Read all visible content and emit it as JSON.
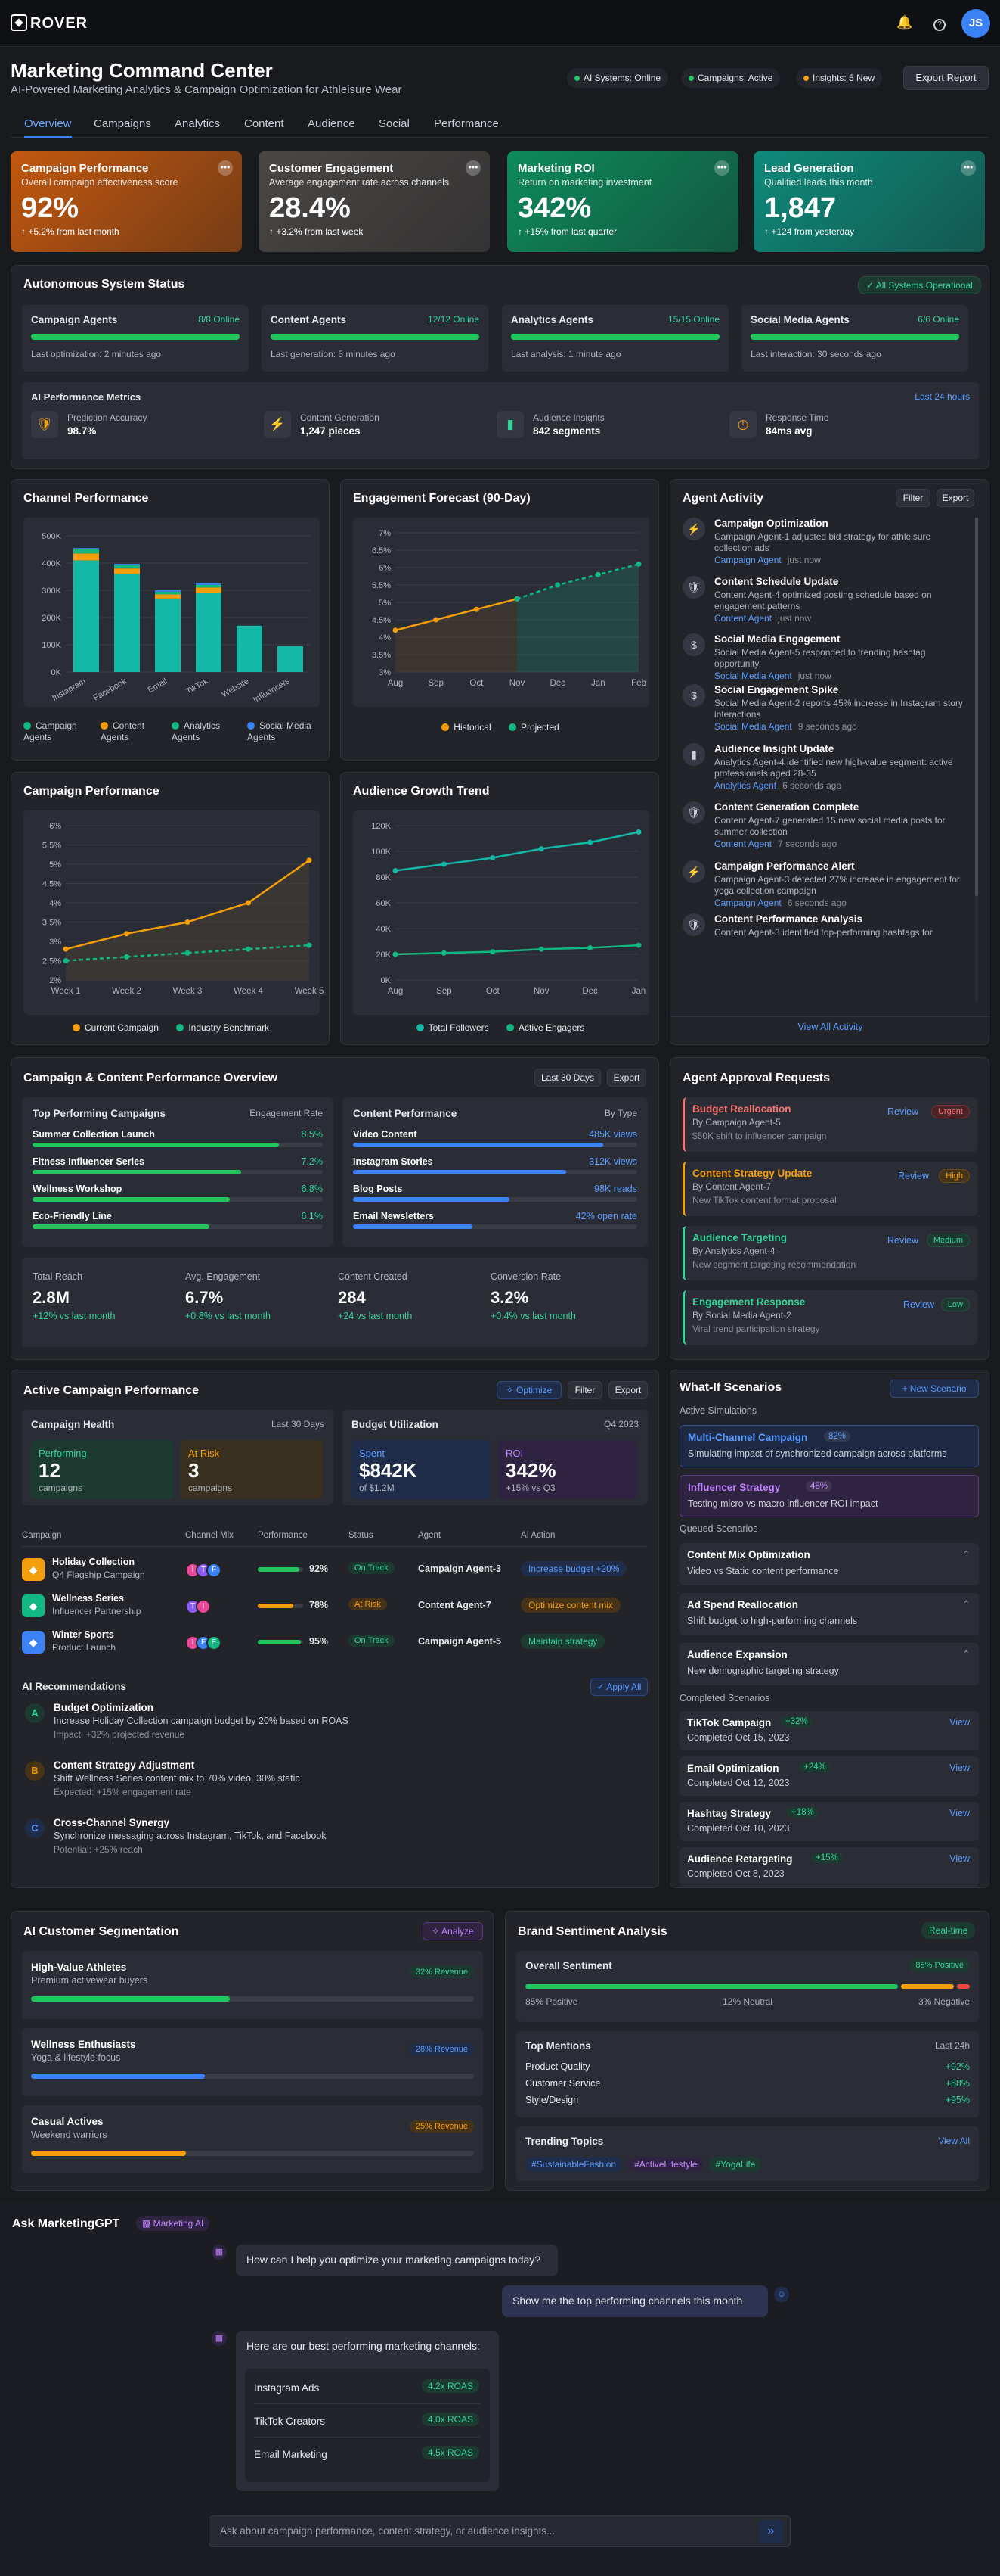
{
  "app": {
    "name": "ROVER",
    "avatar_initials": "JS"
  },
  "header": {
    "title": "Marketing Command Center",
    "subtitle": "AI-Powered Marketing Analytics & Campaign Optimization for Athleisure Wear",
    "status": [
      {
        "label": "AI Systems: Online",
        "color": "#22c55e"
      },
      {
        "label": "Campaigns: Active",
        "color": "#22c55e"
      },
      {
        "label": "Insights: 5 New",
        "color": "#f59e0b"
      }
    ],
    "export_label": "Export Report"
  },
  "tabs": [
    "Overview",
    "Campaigns",
    "Analytics",
    "Content",
    "Audience",
    "Social",
    "Performance"
  ],
  "kpis": [
    {
      "title": "Campaign Performance",
      "sub": "Overall campaign effectiveness score",
      "value": "92%",
      "delta": "+5.2% from last month",
      "color": "#c2580f"
    },
    {
      "title": "Customer Engagement",
      "sub": "Average engagement rate across channels",
      "value": "28.4%",
      "delta": "+3.2% from last week",
      "color": "#4a4744"
    },
    {
      "title": "Marketing ROI",
      "sub": "Return on marketing investment",
      "value": "342%",
      "delta": "+15% from last quarter",
      "color": "#0d8a5c"
    },
    {
      "title": "Lead Generation",
      "sub": "Qualified leads this month",
      "value": "1,847",
      "delta": "+124 from yesterday",
      "color": "#0e8a7a"
    }
  ],
  "autonomous": {
    "title": "Autonomous System Status",
    "badge": "All Systems Operational",
    "agents": [
      {
        "name": "Campaign Agents",
        "online": "8/8 Online",
        "fill": 100,
        "note": "Last optimization: 2 minutes ago"
      },
      {
        "name": "Content Agents",
        "online": "12/12 Online",
        "fill": 100,
        "note": "Last generation: 5 minutes ago"
      },
      {
        "name": "Analytics Agents",
        "online": "15/15 Online",
        "fill": 100,
        "note": "Last analysis: 1 minute ago"
      },
      {
        "name": "Social Media Agents",
        "online": "6/6 Online",
        "fill": 100,
        "note": "Last interaction: 30 seconds ago"
      }
    ],
    "metrics_title": "AI Performance Metrics",
    "metrics_range": "Last 24 hours",
    "metrics": [
      {
        "label": "Prediction Accuracy",
        "value": "98.7%",
        "icon": "shield-icon",
        "color": "#f59e0b"
      },
      {
        "label": "Content Generation",
        "value": "1,247 pieces",
        "icon": "bolt-icon",
        "color": "#34d399"
      },
      {
        "label": "Audience Insights",
        "value": "842 segments",
        "icon": "bar-chart-icon",
        "color": "#34d399"
      },
      {
        "label": "Response Time",
        "value": "84ms avg",
        "icon": "clock-icon",
        "color": "#f59e0b"
      }
    ]
  },
  "channel": {
    "title": "Channel Performance",
    "yticks": [
      "500K",
      "400K",
      "300K",
      "200K",
      "100K",
      "0K"
    ],
    "legend": [
      "Campaign Agents",
      "Content Agents",
      "Analytics Agents",
      "Social Media Agents"
    ],
    "legend_colors": [
      "#10b981",
      "#f59e0b",
      "#10b981",
      "#3b82f6"
    ]
  },
  "forecast": {
    "title": "Engagement Forecast (90-Day)",
    "yticks": [
      "7%",
      "6.5%",
      "6%",
      "5.5%",
      "5%",
      "4.5%",
      "4%",
      "3.5%",
      "3%"
    ],
    "legend": [
      "Historical",
      "Projected"
    ]
  },
  "campaign_perf": {
    "title": "Campaign Performance",
    "yticks": [
      "6%",
      "5.5%",
      "5%",
      "4.5%",
      "4%",
      "3.5%",
      "3%",
      "2.5%",
      "2%"
    ],
    "legend": [
      "Current Campaign",
      "Industry Benchmark"
    ]
  },
  "audience_growth": {
    "title": "Audience Growth Trend",
    "yticks": [
      "120K",
      "100K",
      "80K",
      "60K",
      "40K",
      "20K",
      "0K"
    ],
    "legend": [
      "Total Followers",
      "Active Engagers"
    ]
  },
  "chart_data": [
    {
      "type": "bar",
      "title": "Channel Performance",
      "categories": [
        "Instagram",
        "Facebook",
        "Email",
        "TikTok",
        "Website",
        "Influencers"
      ],
      "ylim": [
        0,
        500000
      ],
      "series": [
        {
          "name": "Campaign Agents",
          "values": [
            410000,
            360000,
            270000,
            290000,
            170000,
            95000
          ]
        },
        {
          "name": "Content Agents",
          "values": [
            25000,
            20000,
            15000,
            20000,
            0,
            0
          ]
        },
        {
          "name": "Analytics Agents",
          "values": [
            15000,
            12000,
            10000,
            10000,
            0,
            0
          ]
        },
        {
          "name": "Social Media Agents",
          "values": [
            5000,
            5000,
            5000,
            5000,
            0,
            0
          ]
        }
      ]
    },
    {
      "type": "line",
      "title": "Engagement Forecast (90-Day)",
      "x": [
        "Aug",
        "Sep",
        "Oct",
        "Nov",
        "Dec",
        "Jan",
        "Feb"
      ],
      "ylim": [
        3,
        7
      ],
      "series": [
        {
          "name": "Historical",
          "values": [
            4.2,
            4.5,
            4.8,
            5.1,
            null,
            null,
            null
          ]
        },
        {
          "name": "Projected",
          "values": [
            null,
            null,
            null,
            5.1,
            5.5,
            5.8,
            6.1
          ]
        }
      ]
    },
    {
      "type": "line",
      "title": "Campaign Performance",
      "x": [
        "Week 1",
        "Week 2",
        "Week 3",
        "Week 4",
        "Week 5"
      ],
      "ylim": [
        2,
        6
      ],
      "series": [
        {
          "name": "Current Campaign",
          "values": [
            2.8,
            3.2,
            3.5,
            4.0,
            5.1
          ]
        },
        {
          "name": "Industry Benchmark",
          "values": [
            2.5,
            2.6,
            2.7,
            2.8,
            2.9
          ]
        }
      ]
    },
    {
      "type": "line",
      "title": "Audience Growth Trend",
      "x": [
        "Aug",
        "Sep",
        "Oct",
        "Nov",
        "Dec",
        "Jan"
      ],
      "ylim": [
        0,
        120000
      ],
      "series": [
        {
          "name": "Total Followers",
          "values": [
            85000,
            90000,
            95000,
            102000,
            107000,
            115000
          ]
        },
        {
          "name": "Active Engagers",
          "values": [
            20000,
            21000,
            22000,
            24000,
            25000,
            27000
          ]
        }
      ]
    }
  ],
  "activity": {
    "title": "Agent Activity",
    "filter": "Filter",
    "export": "Export",
    "view_all": "View All Activity",
    "items": [
      {
        "title": "Campaign Optimization",
        "text": "Campaign Agent-1 adjusted bid strategy for athleisure collection ads",
        "agent": "Campaign Agent",
        "time": "just now",
        "icon": "bolt-icon"
      },
      {
        "title": "Content Schedule Update",
        "text": "Content Agent-4 optimized posting schedule based on engagement patterns",
        "agent": "Content Agent",
        "time": "just now",
        "icon": "shield-icon"
      },
      {
        "title": "Social Media Engagement",
        "text": "Social Media Agent-5 responded to trending hashtag opportunity",
        "agent": "Social Media Agent",
        "time": "just now",
        "icon": "dollar-icon"
      },
      {
        "title": "Social Engagement Spike",
        "text": "Social Media Agent-2 reports 45% increase in Instagram story interactions",
        "agent": "Social Media Agent",
        "time": "9 seconds ago",
        "icon": "dollar-icon"
      },
      {
        "title": "Audience Insight Update",
        "text": "Analytics Agent-4 identified new high-value segment: active professionals aged 28-35",
        "agent": "Analytics Agent",
        "time": "6 seconds ago",
        "icon": "bar-chart-icon"
      },
      {
        "title": "Content Generation Complete",
        "text": "Content Agent-7 generated 15 new social media posts for summer collection",
        "agent": "Content Agent",
        "time": "7 seconds ago",
        "icon": "shield-icon"
      },
      {
        "title": "Campaign Performance Alert",
        "text": "Campaign Agent-3 detected 27% increase in engagement for yoga collection campaign",
        "agent": "Campaign Agent",
        "time": "6 seconds ago",
        "icon": "bolt-icon"
      },
      {
        "title": "Content Performance Analysis",
        "text": "Content Agent-3 identified top-performing hashtags for",
        "agent": "",
        "time": "",
        "icon": "shield-icon"
      }
    ]
  },
  "overview": {
    "title": "Campaign & Content Performance Overview",
    "range": "Last 30 Days",
    "export": "Export",
    "top_title": "Top Performing Campaigns",
    "top_col": "Engagement Rate",
    "top": [
      {
        "name": "Summer Collection Launch",
        "value": "8.5%",
        "fill": 85
      },
      {
        "name": "Fitness Influencer Series",
        "value": "7.2%",
        "fill": 72
      },
      {
        "name": "Wellness Workshop",
        "value": "6.8%",
        "fill": 68
      },
      {
        "name": "Eco-Friendly Line",
        "value": "6.1%",
        "fill": 61
      }
    ],
    "content_title": "Content Performance",
    "content_col": "By Type",
    "content": [
      {
        "name": "Video Content",
        "value": "485K views",
        "fill": 88
      },
      {
        "name": "Instagram Stories",
        "value": "312K views",
        "fill": 75
      },
      {
        "name": "Blog Posts",
        "value": "98K reads",
        "fill": 55
      },
      {
        "name": "Email Newsletters",
        "value": "42% open rate",
        "fill": 42
      }
    ],
    "stats": [
      {
        "label": "Total Reach",
        "value": "2.8M",
        "delta": "+12% vs last month"
      },
      {
        "label": "Avg. Engagement",
        "value": "6.7%",
        "delta": "+0.8% vs last month"
      },
      {
        "label": "Content Created",
        "value": "284",
        "delta": "+24 vs last month"
      },
      {
        "label": "Conversion Rate",
        "value": "3.2%",
        "delta": "+0.4% vs last month"
      }
    ]
  },
  "approvals": {
    "title": "Agent Approval Requests",
    "items": [
      {
        "title": "Budget Reallocation",
        "by": "By Campaign Agent-5",
        "desc": "$50K shift to influencer campaign",
        "priority": "Urgent",
        "color": "#f87171",
        "bg": "#4a2327",
        "bd": "#7f2d33"
      },
      {
        "title": "Content Strategy Update",
        "by": "By Content Agent-7",
        "desc": "New TikTok content format proposal",
        "priority": "High",
        "color": "#f59e0b",
        "bg": "#473418",
        "bd": "#6b4a16"
      },
      {
        "title": "Audience Targeting",
        "by": "By Analytics Agent-4",
        "desc": "New segment targeting recommendation",
        "priority": "Medium",
        "color": "#34d399",
        "bg": "#1d3a30",
        "bd": "#255141"
      },
      {
        "title": "Engagement Response",
        "by": "By Social Media Agent-2",
        "desc": "Viral trend participation strategy",
        "priority": "Low",
        "color": "#34d399",
        "bg": "#1d3a30",
        "bd": "#255141"
      }
    ],
    "review": "Review"
  },
  "active": {
    "title": "Active Campaign Performance",
    "optimize": "Optimize",
    "filter": "Filter",
    "export": "Export",
    "health_title": "Campaign Health",
    "health_range": "Last 30 Days",
    "performing_label": "Performing",
    "performing_value": "12",
    "performing_unit": "campaigns",
    "risk_label": "At Risk",
    "risk_value": "3",
    "risk_unit": "campaigns",
    "budget_title": "Budget Utilization",
    "budget_range": "Q4 2023",
    "spent_label": "Spent",
    "spent_value": "$842K",
    "spent_sub": "of $1.2M",
    "roi_label": "ROI",
    "roi_value": "342%",
    "roi_sub": "+15% vs Q3",
    "cols": [
      "Campaign",
      "Channel Mix",
      "Performance",
      "Status",
      "Agent",
      "AI Action"
    ],
    "rows": [
      {
        "name": "Holiday Collection",
        "sub": "Q4 Flagship Campaign",
        "perf": "92%",
        "fill": 92,
        "status": "On Track",
        "agent": "Campaign Agent-3",
        "action": "Increase budget +20%",
        "action_color": "#5b9bff",
        "action_bg": "#1f2d4a",
        "icon_bg": "#f59e0b",
        "bar": "#22c55e",
        "status_color": "#34d399",
        "status_bg": "#1d3a30",
        "chips": [
          "I",
          "T",
          "F"
        ]
      },
      {
        "name": "Wellness Series",
        "sub": "Influencer Partnership",
        "perf": "78%",
        "fill": 78,
        "status": "At Risk",
        "agent": "Content Agent-7",
        "action": "Optimize content mix",
        "action_color": "#f59e0b",
        "action_bg": "#473418",
        "icon_bg": "#10b981",
        "bar": "#f59e0b",
        "status_color": "#f59e0b",
        "status_bg": "#473418",
        "chips": [
          "T",
          "I"
        ]
      },
      {
        "name": "Winter Sports",
        "sub": "Product Launch",
        "perf": "95%",
        "fill": 95,
        "status": "On Track",
        "agent": "Campaign Agent-5",
        "action": "Maintain strategy",
        "action_color": "#34d399",
        "action_bg": "#1d3a30",
        "icon_bg": "#3b82f6",
        "bar": "#22c55e",
        "status_color": "#34d399",
        "status_bg": "#1d3a30",
        "chips": [
          "I",
          "F",
          "E"
        ]
      }
    ],
    "rec_title": "AI Recommendations",
    "apply": "Apply All",
    "recs": [
      {
        "letter": "A",
        "title": "Budget Optimization",
        "text": "Increase Holiday Collection campaign budget by 20% based on ROAS",
        "impact": "Impact: +32% projected revenue",
        "color": "#34d399",
        "bg": "#1d3a30"
      },
      {
        "letter": "B",
        "title": "Content Strategy Adjustment",
        "text": "Shift Wellness Series content mix to 70% video, 30% static",
        "impact": "Expected: +15% engagement rate",
        "color": "#f59e0b",
        "bg": "#473418"
      },
      {
        "letter": "C",
        "title": "Cross-Channel Synergy",
        "text": "Synchronize messaging across Instagram, TikTok, and Facebook",
        "impact": "Potential: +25% reach",
        "color": "#5b9bff",
        "bg": "#1f2d4a"
      }
    ]
  },
  "whatif": {
    "title": "What-If Scenarios",
    "new": "+ New Scenario",
    "active_label": "Active Simulations",
    "sims": [
      {
        "title": "Multi-Channel Campaign",
        "pct": "82%",
        "text": "Simulating impact of synchronized campaign across platforms",
        "color": "#5b9bff",
        "bg": "#1e2a44",
        "bd": "#2d4a80"
      },
      {
        "title": "Influencer Strategy",
        "pct": "45%",
        "text": "Testing micro vs macro influencer ROI impact",
        "color": "#c084fc",
        "bg": "#2e2340",
        "bd": "#5a3a7a"
      }
    ],
    "queued_label": "Queued Scenarios",
    "queued": [
      {
        "title": "Content Mix Optimization",
        "text": "Video vs Static content performance"
      },
      {
        "title": "Ad Spend Reallocation",
        "text": "Shift budget to high-performing channels"
      },
      {
        "title": "Audience Expansion",
        "text": "New demographic targeting strategy"
      }
    ],
    "completed_label": "Completed Scenarios",
    "completed": [
      {
        "title": "TikTok Campaign",
        "pct": "+32%",
        "date": "Completed Oct 15, 2023"
      },
      {
        "title": "Email Optimization",
        "pct": "+24%",
        "date": "Completed Oct 12, 2023"
      },
      {
        "title": "Hashtag Strategy",
        "pct": "+18%",
        "date": "Completed Oct 10, 2023"
      },
      {
        "title": "Audience Retargeting",
        "pct": "+15%",
        "date": "Completed Oct 8, 2023"
      }
    ],
    "view": "View"
  },
  "segmentation": {
    "title": "AI Customer Segmentation",
    "analyze": "Analyze",
    "segments": [
      {
        "name": "High-Value Athletes",
        "sub": "Premium activewear buyers",
        "badge": "32% Revenue",
        "fill": 32,
        "color": "#34d399",
        "bg": "#1d3a30",
        "bar": "#22c55e"
      },
      {
        "name": "Wellness Enthusiasts",
        "sub": "Yoga & lifestyle focus",
        "badge": "28% Revenue",
        "fill": 28,
        "color": "#5b9bff",
        "bg": "#1f2d4a",
        "bar": "#3b82f6"
      },
      {
        "name": "Casual Actives",
        "sub": "Weekend warriors",
        "badge": "25% Revenue",
        "fill": 25,
        "color": "#f59e0b",
        "bg": "#473418",
        "bar": "#f59e0b"
      }
    ]
  },
  "sentiment": {
    "title": "Brand Sentiment Analysis",
    "realtime": "Real-time",
    "overall_label": "Overall Sentiment",
    "overall_badge": "85% Positive",
    "positive": "85% Positive",
    "neutral": "12% Neutral",
    "negative": "3% Negative",
    "shares": [
      85,
      12,
      3
    ],
    "mentions_title": "Top Mentions",
    "mentions_range": "Last 24h",
    "mentions": [
      {
        "name": "Product Quality",
        "value": "+92%"
      },
      {
        "name": "Customer Service",
        "value": "+88%"
      },
      {
        "name": "Style/Design",
        "value": "+95%"
      }
    ],
    "topics_title": "Trending Topics",
    "view_all": "View All",
    "topics": [
      {
        "tag": "#SustainableFashion",
        "color": "#5b9bff",
        "bg": "#1f2d4a"
      },
      {
        "tag": "#ActiveLifestyle",
        "color": "#c084fc",
        "bg": "#2e2340"
      },
      {
        "tag": "#YogaLife",
        "color": "#34d399",
        "bg": "#1d3a30"
      }
    ]
  },
  "chat": {
    "title": "Ask MarketingGPT",
    "badge": "Marketing AI",
    "q1": "How can I help you optimize your marketing campaigns today?",
    "u1": "Show me the top performing channels this month",
    "a1": "Here are our best performing marketing channels:",
    "channels": [
      {
        "name": "Instagram Ads",
        "roas": "4.2x ROAS"
      },
      {
        "name": "TikTok Creators",
        "roas": "4.0x ROAS"
      },
      {
        "name": "Email Marketing",
        "roas": "4.5x ROAS"
      }
    ],
    "placeholder": "Ask about campaign performance, content strategy, or audience insights..."
  }
}
